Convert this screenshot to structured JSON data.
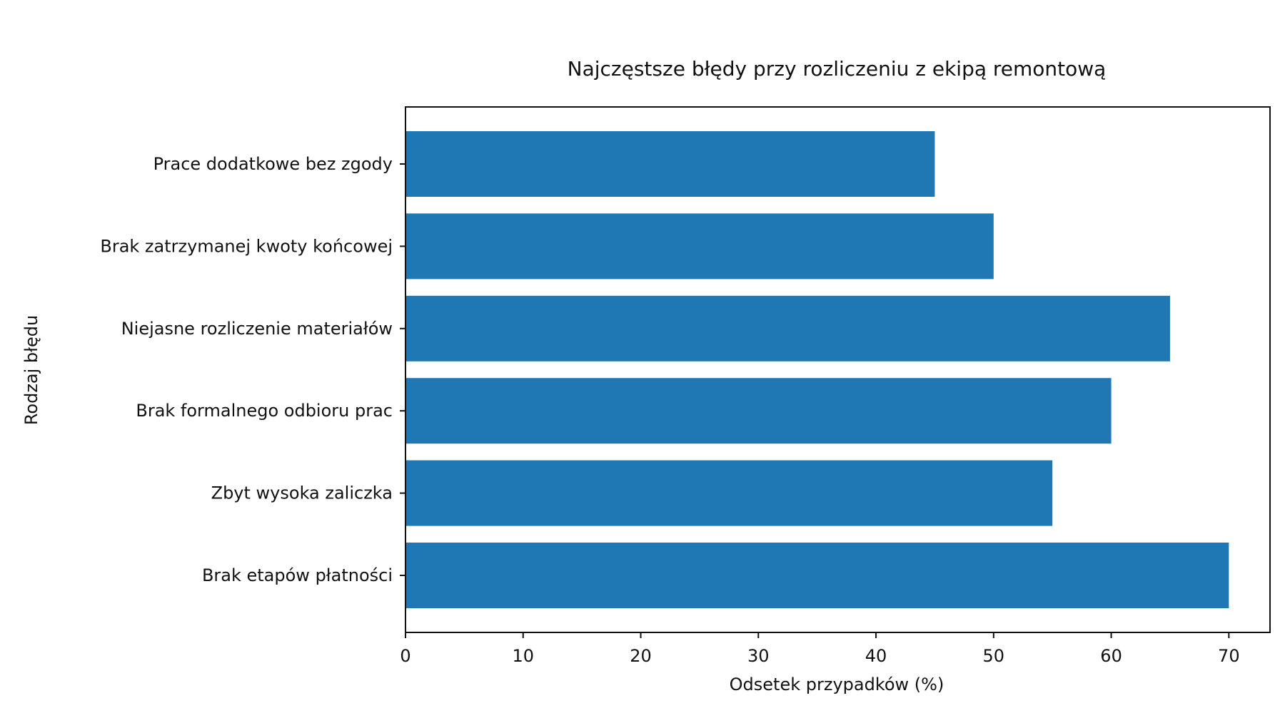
{
  "chart_data": {
    "type": "bar",
    "orientation": "horizontal",
    "title": "Najczęstsze błędy przy rozliczeniu z ekipą remontową",
    "xlabel": "Odsetek przypadków (%)",
    "ylabel": "Rodzaj błędu",
    "categories": [
      "Prace dodatkowe bez zgody",
      "Brak zatrzymanej kwoty końcowej",
      "Niejasne rozliczenie materiałów",
      "Brak formalnego odbioru prac",
      "Zbyt wysoka zaliczka",
      "Brak etapów płatności"
    ],
    "values": [
      45,
      50,
      65,
      60,
      55,
      70
    ],
    "xlim": [
      0,
      73.5
    ],
    "xticks": [
      0,
      10,
      20,
      30,
      40,
      50,
      60,
      70
    ],
    "bar_color": "#1f77b4",
    "grid": false,
    "legend": "none"
  }
}
